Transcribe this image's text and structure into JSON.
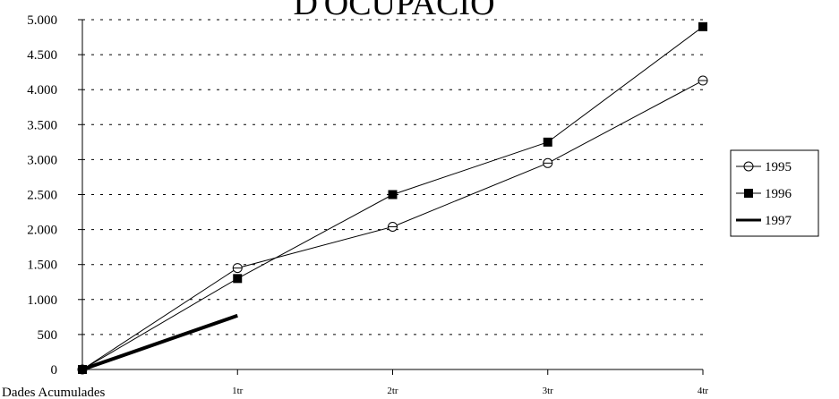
{
  "chart_data": {
    "type": "line",
    "title": "D'OCUPACIÓ",
    "categories": [
      "Dades Acumulades",
      "1tr",
      "2tr",
      "3tr",
      "4tr"
    ],
    "ylim": [
      0,
      5000
    ],
    "yticks": [
      0,
      500,
      1000,
      1500,
      2000,
      2500,
      3000,
      3500,
      4000,
      4500,
      5000
    ],
    "ytick_labels": [
      "0",
      "500",
      "1.000",
      "1.500",
      "2.000",
      "2.500",
      "3.000",
      "3.500",
      "4.000",
      "4.500",
      "5.000"
    ],
    "grid": "horizontal-dashed",
    "legend_position": "right",
    "series": [
      {
        "name": "1995",
        "marker": "open-circle",
        "line": "thin",
        "color": "#000000",
        "values": [
          0,
          1450,
          2040,
          2950,
          4130
        ]
      },
      {
        "name": "1996",
        "marker": "filled-square",
        "line": "thin",
        "color": "#000000",
        "values": [
          0,
          1300,
          2500,
          3250,
          4900
        ]
      },
      {
        "name": "1997",
        "marker": "none",
        "line": "thick",
        "color": "#000000",
        "values": [
          0,
          770,
          null,
          null,
          null
        ]
      }
    ]
  }
}
